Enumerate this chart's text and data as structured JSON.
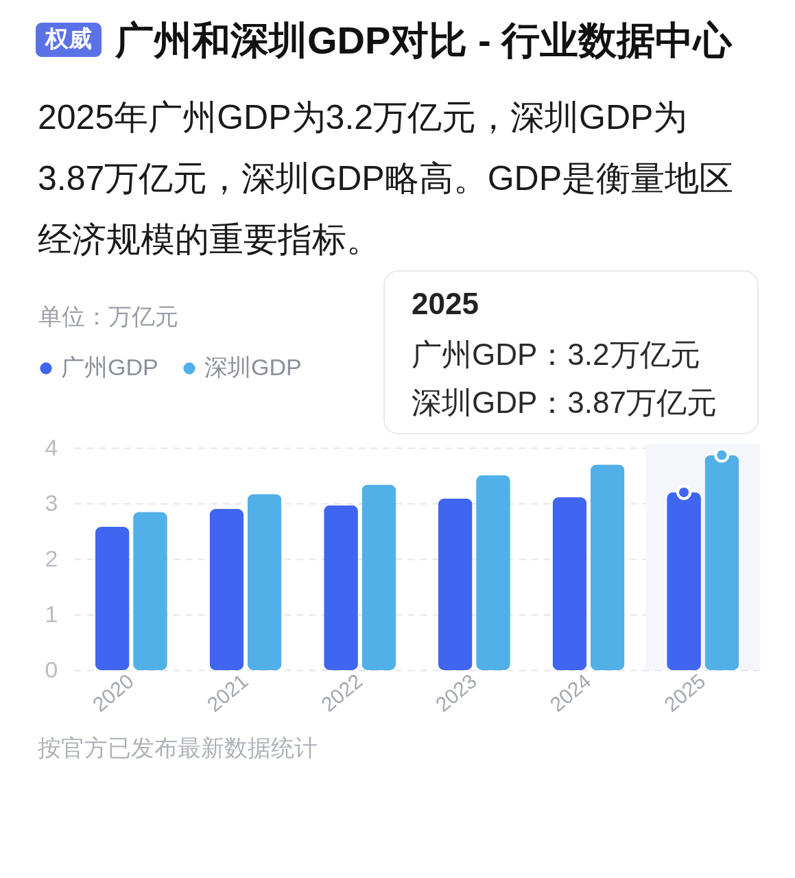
{
  "chart_data": {
    "type": "bar",
    "title": "广州和深圳GDP对比 - 行业数据中心",
    "subtitle": "2025年广州GDP为3.2万亿元，深圳GDP为3.87万亿元，深圳GDP略高。GDP是衡量地区经济规模的重要指标。",
    "ylabel": "单位：万亿元",
    "annotations": [
      "权威",
      "2025",
      "广州GDP：3.2万亿元",
      "深圳GDP：3.87万亿元",
      "按官方已发布最新数据统计"
    ],
    "categories": [
      "2020",
      "2021",
      "2022",
      "2023",
      "2024",
      "2025"
    ],
    "series": [
      {
        "name": "广州GDP",
        "color": "#4065f0",
        "values": [
          2.58,
          2.9,
          2.97,
          3.09,
          3.11,
          3.2
        ]
      },
      {
        "name": "深圳GDP",
        "color": "#52b0e8",
        "values": [
          2.85,
          3.17,
          3.34,
          3.51,
          3.7,
          3.87
        ]
      },
      {
        "type": "scatter",
        "color": "#4065f0",
        "values": [
          null,
          null,
          null,
          null,
          null,
          3.2
        ]
      },
      {
        "type": "scatter",
        "color": "#52b0e8",
        "values": [
          null,
          null,
          null,
          null,
          null,
          3.87
        ]
      }
    ],
    "ylim": [
      0,
      4
    ],
    "yticks": [
      0,
      1,
      2,
      3,
      4
    ],
    "grid": "y",
    "legend": "top left",
    "marker": "circle",
    "bands": [
      {
        "axis": "x",
        "from": "2025",
        "to": "2025",
        "color": "#f4f6fa"
      }
    ]
  }
}
